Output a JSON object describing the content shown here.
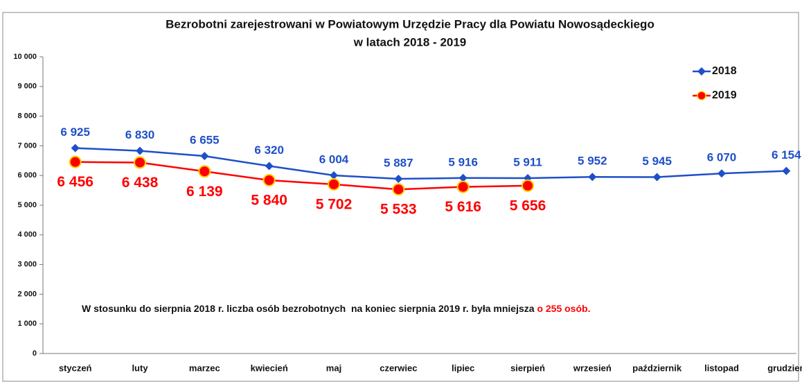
{
  "chart_data": {
    "type": "line",
    "title": "Bezrobotni zarejestrowani w Powiatowym Urzędzie Pracy dla Powiatu Nowosądeckiego",
    "subtitle": "w latach 2018 - 2019",
    "categories": [
      "styczeń",
      "luty",
      "marzec",
      "kwiecień",
      "maj",
      "czerwiec",
      "lipiec",
      "sierpień",
      "wrzesień",
      "październik",
      "listopad",
      "grudzień"
    ],
    "series": [
      {
        "name": "2018",
        "color": "#1f4fc8",
        "marker": "diamond",
        "values": [
          6925,
          6830,
          6655,
          6320,
          6004,
          5887,
          5916,
          5911,
          5952,
          5945,
          6070,
          6154
        ],
        "value_labels": [
          "6 925",
          "6 830",
          "6 655",
          "6 320",
          "6 004",
          "5 887",
          "5 916",
          "5 911",
          "5 952",
          "5 945",
          "6 070",
          "6 154"
        ]
      },
      {
        "name": "2019",
        "color": "#ff0000",
        "marker": "circle",
        "values": [
          6456,
          6438,
          6139,
          5840,
          5702,
          5533,
          5616,
          5656,
          null,
          null,
          null,
          null
        ],
        "value_labels": [
          "6 456",
          "6 438",
          "6 139",
          "5 840",
          "5 702",
          "5 533",
          "5 616",
          "5 656",
          null,
          null,
          null,
          null
        ]
      }
    ],
    "ylim": [
      0,
      10000
    ],
    "yticks": [
      0,
      {
        "value": 1000,
        "label": "1 000"
      },
      {
        "value": 2000,
        "label": "2 000"
      },
      {
        "value": 3000,
        "label": "3 000"
      },
      {
        "value": 4000,
        "label": "4 000"
      },
      {
        "value": 5000,
        "label": "5 000"
      },
      {
        "value": 6000,
        "label": "6 000"
      },
      {
        "value": 7000,
        "label": "7 000"
      },
      {
        "value": 8000,
        "label": "8 000"
      },
      {
        "value": 9000,
        "label": "9 000"
      },
      {
        "value": 10000,
        "label": "10 000"
      }
    ],
    "grid": false,
    "legend": "top-right",
    "annotation": {
      "text": "W stosunku do sierpnia 2018 r. liczba osób bezrobotnych  na koniec sierpnia 2019 r. była mniejsza",
      "highlight": "o 255 osób."
    }
  }
}
